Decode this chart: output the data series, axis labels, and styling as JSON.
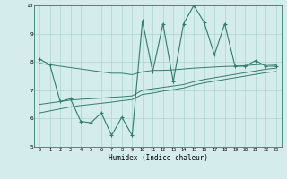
{
  "xlabel": "Humidex (Indice chaleur)",
  "x": [
    0,
    1,
    2,
    3,
    4,
    5,
    6,
    7,
    8,
    9,
    10,
    11,
    12,
    13,
    14,
    15,
    16,
    17,
    18,
    19,
    20,
    21,
    22,
    23
  ],
  "y_main": [
    8.1,
    7.9,
    6.6,
    6.7,
    5.9,
    5.85,
    6.2,
    5.4,
    6.05,
    5.4,
    9.45,
    7.65,
    9.35,
    7.3,
    9.35,
    10.0,
    9.4,
    8.25,
    9.35,
    7.85,
    7.85,
    8.05,
    7.85,
    7.85
  ],
  "y_trend1": [
    7.95,
    7.9,
    7.85,
    7.8,
    7.75,
    7.7,
    7.65,
    7.6,
    7.6,
    7.55,
    7.65,
    7.7,
    7.7,
    7.72,
    7.75,
    7.78,
    7.8,
    7.82,
    7.84,
    7.85,
    7.87,
    7.9,
    7.92,
    7.9
  ],
  "y_trend2": [
    6.5,
    6.55,
    6.6,
    6.65,
    6.68,
    6.7,
    6.72,
    6.75,
    6.77,
    6.8,
    7.0,
    7.05,
    7.1,
    7.15,
    7.2,
    7.3,
    7.38,
    7.44,
    7.5,
    7.56,
    7.62,
    7.68,
    7.74,
    7.78
  ],
  "y_trend3": [
    6.2,
    6.27,
    6.34,
    6.41,
    6.46,
    6.5,
    6.54,
    6.58,
    6.63,
    6.67,
    6.85,
    6.9,
    6.97,
    7.02,
    7.08,
    7.18,
    7.26,
    7.32,
    7.38,
    7.44,
    7.5,
    7.56,
    7.62,
    7.66
  ],
  "line_color": "#2e7d6e",
  "bg_color": "#d4edec",
  "grid_color": "#aad4d0",
  "ylim": [
    5,
    10
  ],
  "xlim": [
    -0.5,
    23.5
  ]
}
